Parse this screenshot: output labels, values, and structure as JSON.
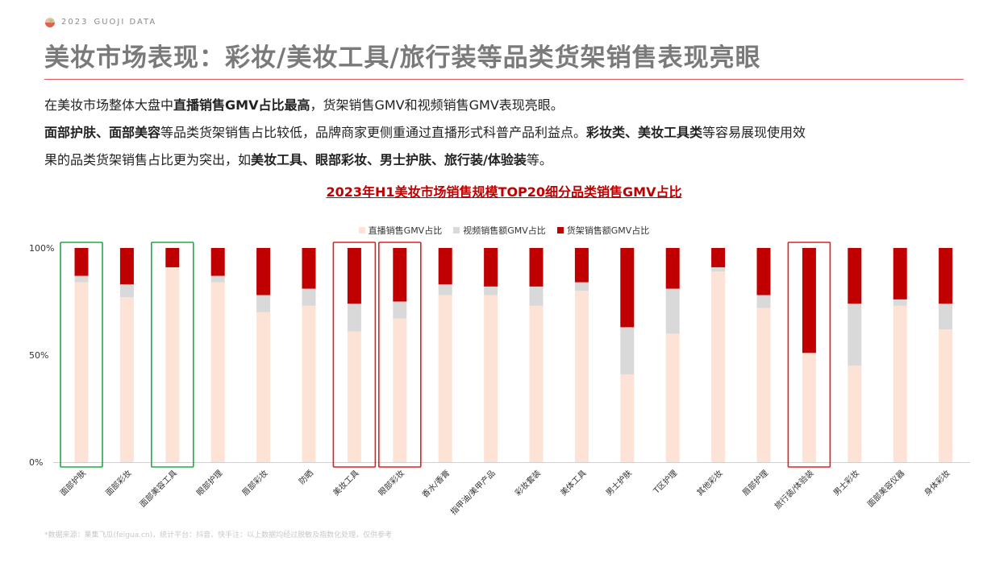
{
  "header": {
    "year": "2023",
    "brand": "GUOJI DATA",
    "title": "美妆市场表现：彩妆/美妆工具/旅行装等品类货架销售表现亮眼"
  },
  "intro": {
    "line1": [
      "在美妆市场整体大盘中",
      "直播销售GMV占比最高",
      "，货架销售GMV和视频销售GMV表现亮眼。"
    ],
    "line2": [
      "面部护肤、面部美容",
      "等品类货架销售占比较低，品牌商家更侧重通过直播形式科普产品利益点。",
      "彩妆类、美妆工具类",
      "等容易展现使用效"
    ],
    "line3": [
      "果的品类货架销售占比更为突出，如",
      "美妆工具、眼部彩妆、男士护肤、旅行装/体验装",
      "等。"
    ]
  },
  "chart_title": "2023年H1美妆市场销售规模TOP20细分品类销售GMV占比",
  "footnote": "*数据来源：果集飞瓜(feigua.cn)，统计平台：抖音、快手注：以上数据均经过脱敏及指数化处理，仅供参考",
  "colors": {
    "live": "#fde3d6",
    "video": "#d9d9d9",
    "shelf": "#c00000",
    "green_box": "#22aa44",
    "red_box": "#e02020"
  },
  "chart_data": {
    "type": "bar",
    "stacked": true,
    "categories": [
      "面部护肤",
      "面部彩妆",
      "面部美容工具",
      "眼部护理",
      "唇部彩妆",
      "防晒",
      "美妆工具",
      "眼部彩妆",
      "香水/香膏",
      "指甲油/美甲产品",
      "彩妆套装",
      "美体工具",
      "男士护肤",
      "T区护理",
      "其他彩妆",
      "唇部护理",
      "旅行装/体验装",
      "男士彩妆",
      "面部美容仪器",
      "身体彩妆"
    ],
    "series": [
      {
        "name": "直播销售GMV占比",
        "values": [
          84,
          77,
          91,
          84,
          70,
          73,
          61,
          67,
          78,
          78,
          73,
          80,
          41,
          60,
          89,
          72,
          51,
          45,
          73,
          62
        ]
      },
      {
        "name": "视频销售额GMV占比",
        "values": [
          3,
          6,
          0,
          3,
          8,
          8,
          13,
          8,
          5,
          4,
          9,
          4,
          22,
          21,
          2,
          6,
          0,
          29,
          3,
          12
        ]
      },
      {
        "name": "货架销售额GMV占比",
        "values": [
          13,
          17,
          9,
          13,
          22,
          19,
          26,
          25,
          17,
          18,
          18,
          16,
          37,
          19,
          9,
          22,
          49,
          26,
          24,
          26
        ]
      }
    ],
    "yticks": [
      "0%",
      "50%",
      "100%"
    ],
    "ylim": [
      0,
      100
    ],
    "legend_position": "top",
    "highlight_green": [
      0,
      2
    ],
    "highlight_red": [
      6,
      7,
      16
    ]
  }
}
